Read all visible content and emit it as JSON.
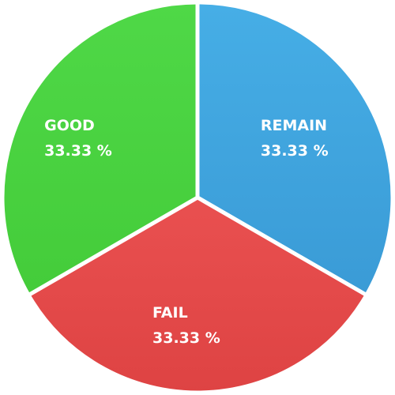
{
  "chart_data": {
    "type": "pie",
    "title": "",
    "slices": [
      {
        "label": "REMAIN",
        "value": 33.33,
        "display": "33.33 %",
        "color": "#46aee6",
        "color_dark": "#3a9bd6"
      },
      {
        "label": "FAIL",
        "value": 33.33,
        "display": "33.33 %",
        "color": "#e95050",
        "color_dark": "#de4343"
      },
      {
        "label": "GOOD",
        "value": 33.33,
        "display": "33.33 %",
        "color": "#4fd847",
        "color_dark": "#44cc3a"
      }
    ],
    "start_angle_deg": 0,
    "direction": "clockwise",
    "legend": "none"
  }
}
